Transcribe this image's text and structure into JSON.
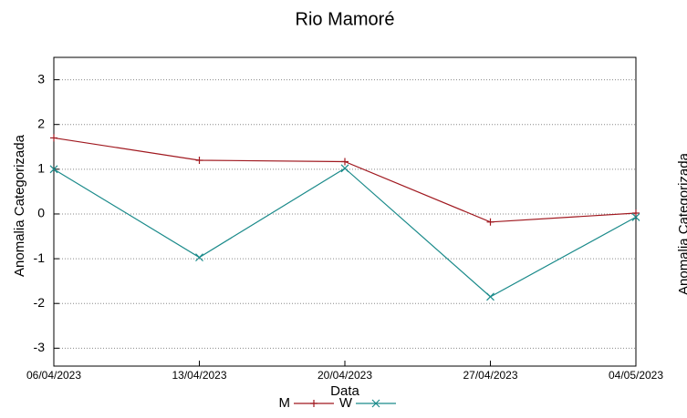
{
  "chart_data": [
    {
      "type": "line",
      "title": "Rio Mamoré",
      "xlabel": "Data",
      "ylabel": "Anomalia Categorizada",
      "categories": [
        "06/04/2023",
        "13/04/2023",
        "20/04/2023",
        "27/04/2023",
        "04/05/2023"
      ],
      "series": [
        {
          "name": "M",
          "color": "#a0181f",
          "marker": "+",
          "values": [
            1.7,
            1.2,
            1.17,
            -0.18,
            0.02
          ]
        },
        {
          "name": "W",
          "color": "#1a8a8a",
          "marker": "x",
          "values": [
            1.0,
            -0.97,
            1.02,
            -1.85,
            -0.07
          ]
        }
      ],
      "ylim": [
        -3.4,
        3.5
      ],
      "yticks": [
        -3,
        -2,
        -1,
        0,
        1,
        2,
        3
      ],
      "grid": true
    },
    {
      "type": "line",
      "ylabel": "Anomalia Categorizada"
    }
  ]
}
